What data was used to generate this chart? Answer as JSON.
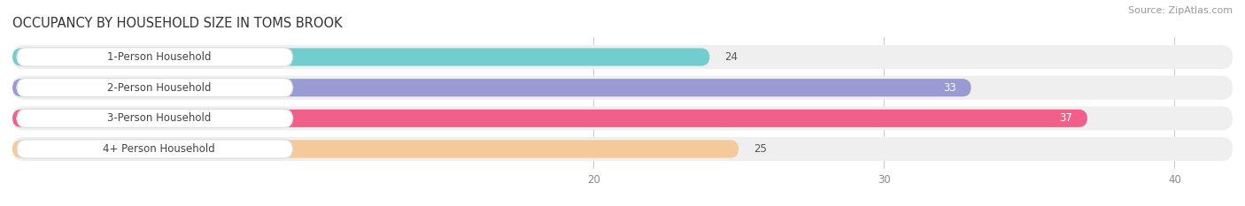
{
  "title": "OCCUPANCY BY HOUSEHOLD SIZE IN TOMS BROOK",
  "source": "Source: ZipAtlas.com",
  "categories": [
    "1-Person Household",
    "2-Person Household",
    "3-Person Household",
    "4+ Person Household"
  ],
  "values": [
    24,
    33,
    37,
    25
  ],
  "bar_colors": [
    "#72CECE",
    "#9B9BD4",
    "#F0608A",
    "#F5C99A"
  ],
  "bar_bg_color": "#EFEFEF",
  "label_bg_color": "#FFFFFF",
  "xlim_data": [
    0,
    42
  ],
  "x_axis_min": 17,
  "xticks": [
    20,
    30,
    40
  ],
  "title_fontsize": 10.5,
  "source_fontsize": 8,
  "label_fontsize": 8.5,
  "value_fontsize": 8.5,
  "figure_bg": "#FFFFFF",
  "axes_bg": "#FFFFFF"
}
